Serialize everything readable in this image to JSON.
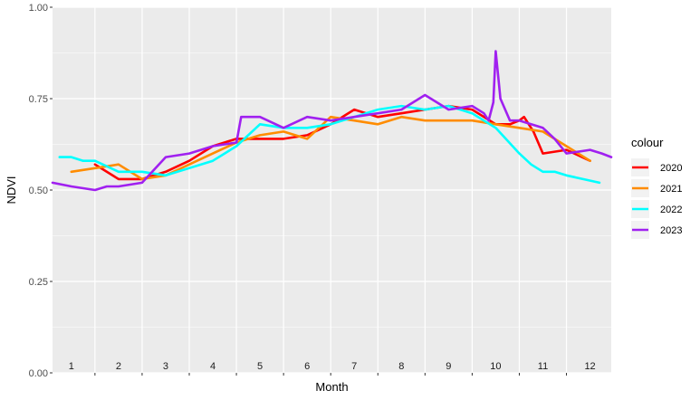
{
  "chart_data": {
    "type": "line",
    "xlabel": "Month",
    "ylabel": "NDVI",
    "ylim": [
      0,
      1
    ],
    "xlim": [
      0.6,
      12.45
    ],
    "y_ticks": [
      "0.00",
      "0.25",
      "0.50",
      "0.75",
      "1.00"
    ],
    "month_labels": [
      "1",
      "2",
      "3",
      "4",
      "5",
      "6",
      "7",
      "8",
      "9",
      "10",
      "11",
      "12"
    ],
    "grid": true,
    "legend": {
      "title": "colour",
      "position": "right"
    },
    "series": [
      {
        "name": "2020",
        "color": "#ff0000",
        "x": [
          1.5,
          2.0,
          2.5,
          3.0,
          3.5,
          4.0,
          4.5,
          5.0,
          5.5,
          6.0,
          6.5,
          7.0,
          7.5,
          8.0,
          8.5,
          9.0,
          9.5,
          10.0,
          10.3,
          10.5,
          10.6,
          10.8,
          11.0,
          11.5,
          12.0
        ],
        "y": [
          0.57,
          0.53,
          0.53,
          0.55,
          0.58,
          0.62,
          0.64,
          0.64,
          0.64,
          0.65,
          0.68,
          0.72,
          0.7,
          0.71,
          0.72,
          0.73,
          0.72,
          0.68,
          0.68,
          0.69,
          0.7,
          0.66,
          0.6,
          0.61,
          0.58
        ]
      },
      {
        "name": "2021",
        "color": "#ff8c00",
        "x": [
          1.0,
          1.5,
          2.0,
          2.5,
          3.0,
          3.5,
          4.0,
          4.5,
          5.0,
          5.5,
          6.0,
          6.5,
          7.0,
          7.5,
          8.0,
          8.5,
          9.0,
          9.5,
          10.0,
          10.5,
          11.0,
          11.5,
          12.0
        ],
        "y": [
          0.55,
          0.56,
          0.57,
          0.53,
          0.54,
          0.57,
          0.6,
          0.63,
          0.65,
          0.66,
          0.64,
          0.7,
          0.69,
          0.68,
          0.7,
          0.69,
          0.69,
          0.69,
          0.68,
          0.67,
          0.66,
          0.62,
          0.58
        ]
      },
      {
        "name": "2022",
        "color": "#00ffff",
        "x": [
          0.75,
          1.0,
          1.25,
          1.5,
          2.0,
          2.5,
          3.0,
          3.5,
          4.0,
          4.5,
          5.0,
          5.5,
          6.0,
          6.5,
          7.0,
          7.5,
          8.0,
          8.5,
          9.0,
          9.5,
          10.0,
          10.5,
          10.75,
          11.0,
          11.25,
          11.5,
          12.2
        ],
        "y": [
          0.59,
          0.59,
          0.58,
          0.58,
          0.55,
          0.55,
          0.54,
          0.56,
          0.58,
          0.62,
          0.68,
          0.67,
          0.67,
          0.68,
          0.7,
          0.72,
          0.73,
          0.72,
          0.73,
          0.71,
          0.67,
          0.6,
          0.57,
          0.55,
          0.55,
          0.54,
          0.52
        ]
      },
      {
        "name": "2023",
        "color": "#a020f0",
        "x": [
          0.6,
          1.0,
          1.5,
          1.75,
          2.0,
          2.5,
          3.0,
          3.5,
          4.0,
          4.5,
          4.6,
          5.0,
          5.5,
          6.0,
          6.5,
          7.0,
          7.5,
          8.0,
          8.5,
          9.0,
          9.5,
          9.75,
          9.85,
          9.95,
          10.0,
          10.1,
          10.3,
          10.5,
          11.0,
          11.25,
          11.5,
          12.0,
          12.25,
          12.45
        ],
        "y": [
          0.52,
          0.51,
          0.5,
          0.51,
          0.51,
          0.52,
          0.59,
          0.6,
          0.62,
          0.63,
          0.7,
          0.7,
          0.67,
          0.7,
          0.69,
          0.7,
          0.71,
          0.72,
          0.76,
          0.72,
          0.73,
          0.71,
          0.69,
          0.74,
          0.88,
          0.75,
          0.69,
          0.69,
          0.67,
          0.64,
          0.6,
          0.61,
          0.6,
          0.59
        ]
      }
    ]
  }
}
